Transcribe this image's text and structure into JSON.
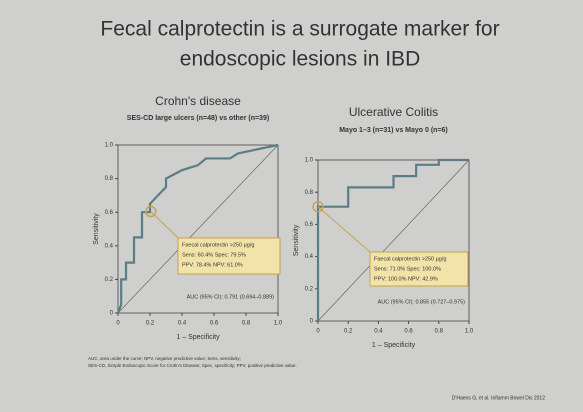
{
  "slide": {
    "title_lines": [
      "Fecal calprotectin is a surrogate marker for",
      "endoscopic lesions in IBD"
    ],
    "footnotes": [
      "AUC, area under the curve; NPV, negative predictive value; Sens, sensitivity;",
      "SES-CD, Simple Endoscopic Score for Crohn's Disease; Spec, specificity; PPV, positive predictive value."
    ],
    "citation": "D'Haens G, et al. Inflamm Bowel Dis 2012"
  },
  "chart_data": [
    {
      "type": "line",
      "title": "Crohn's disease",
      "subtitle": "SES-CD large ulcers (n=48) vs other (n=39)",
      "xlabel": "1 – Specificity",
      "ylabel": "Sensitivity",
      "x": [
        0,
        0.02,
        0.02,
        0.05,
        0.05,
        0.1,
        0.1,
        0.15,
        0.15,
        0.2,
        0.2,
        0.25,
        0.3,
        0.3,
        0.4,
        0.5,
        0.55,
        0.7,
        0.75,
        1
      ],
      "values": [
        0,
        0.05,
        0.2,
        0.2,
        0.3,
        0.3,
        0.45,
        0.45,
        0.6,
        0.6,
        0.65,
        0.7,
        0.75,
        0.8,
        0.85,
        0.88,
        0.92,
        0.92,
        0.95,
        1
      ],
      "color": "#5b7e86",
      "highlight": {
        "x": 0.205,
        "y": 0.604
      },
      "annotation": [
        "Faecal calprotectin >250 µg/g",
        "Sens: 60.4%  Spec: 79.5%",
        "PPV: 78.4%  NPV: 61.0%"
      ],
      "auc_label": "AUC (95% CI): 0.791 (0.694–0.889)",
      "xlim": [
        0,
        1
      ],
      "ylim": [
        0,
        1
      ],
      "xticks": [
        0,
        0.2,
        0.4,
        0.6,
        0.8,
        {
          "value": 1,
          "label": "1.0"
        }
      ],
      "yticks": [
        0,
        0.2,
        0.4,
        0.6,
        0.8,
        {
          "value": 1,
          "label": "1.0"
        }
      ]
    },
    {
      "type": "line",
      "title": "Ulcerative Colitis",
      "subtitle": "Mayo 1–3 (n=31) vs Mayo 0 (n=6)",
      "xlabel": "1 – Specificity",
      "ylabel": "Sensitivity",
      "x": [
        0,
        0,
        0.2,
        0.2,
        0.5,
        0.5,
        0.65,
        0.65,
        0.8,
        0.8,
        1
      ],
      "values": [
        0,
        0.71,
        0.71,
        0.83,
        0.83,
        0.9,
        0.9,
        0.97,
        0.97,
        1,
        1
      ],
      "color": "#5b7e86",
      "highlight": {
        "x": 0,
        "y": 0.71
      },
      "annotation": [
        "Faecal calprotectin >250 µg/g",
        "Sens: 71.0%  Spec: 100.0%",
        "PPV: 100.0%  NPV: 42.9%"
      ],
      "auc_label": "AUC (95% CI): 0.855 (0.727–0.975)",
      "xlim": [
        0,
        1
      ],
      "ylim": [
        0,
        1
      ],
      "xticks": [
        0,
        0.2,
        0.4,
        0.6,
        0.8,
        {
          "value": 1,
          "label": "1.0"
        }
      ],
      "yticks": [
        0,
        0.2,
        0.4,
        0.6,
        0.8,
        {
          "value": 1,
          "label": "1.0"
        }
      ]
    }
  ]
}
